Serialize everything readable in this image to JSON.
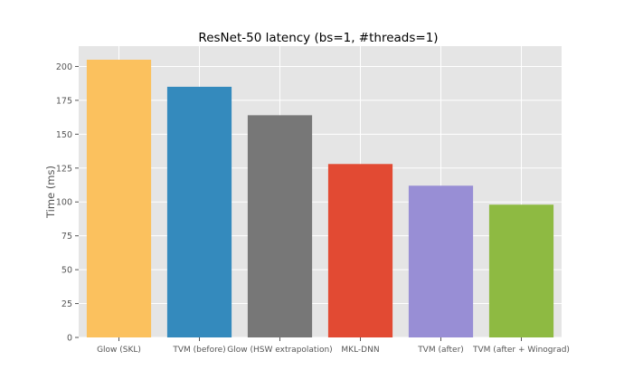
{
  "chart_data": {
    "type": "bar",
    "title": "ResNet-50 latency (bs=1, #threads=1)",
    "xlabel": "",
    "ylabel": "Time (ms)",
    "categories": [
      "Glow (SKL)",
      "TVM (before)",
      "Glow (HSW extrapolation)",
      "MKL-DNN",
      "TVM (after)",
      "TVM (after + Winograd)"
    ],
    "values": [
      205,
      185,
      164,
      128,
      112,
      98
    ],
    "colors": [
      "#fbc15e",
      "#348abd",
      "#777777",
      "#e24a33",
      "#988ed5",
      "#8eba42"
    ],
    "ylim": [
      0,
      215
    ],
    "yticks": [
      0,
      25,
      50,
      75,
      100,
      125,
      150,
      175,
      200
    ],
    "grid": true,
    "background": "#e5e5e5",
    "grid_color": "#ffffff"
  }
}
